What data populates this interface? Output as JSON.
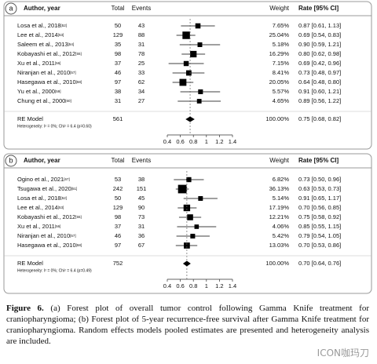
{
  "chart_data": [
    {
      "type": "forest",
      "panel_label": "a",
      "columns": {
        "study": "Author, year",
        "total": "Total",
        "events": "Events",
        "weight": "Weight",
        "rate": "Rate [95% CI]"
      },
      "studies": [
        "Losa et al., 2018",
        "Lee et al., 2014",
        "Saleem et al., 2013",
        "Kobayashi et al., 2012",
        "Xu et al., 2011",
        "Niranjan et al., 2010",
        "Hasegawa et al., 2010",
        "Yu et al., 2000",
        "Chung et al., 2000"
      ],
      "refs": [
        "[52]",
        "[53]",
        "[54]",
        "[55]",
        "[56]",
        "[57]",
        "[58]",
        "[59]",
        "[60]"
      ],
      "total": [
        50,
        129,
        35,
        98,
        37,
        46,
        97,
        38,
        31
      ],
      "events": [
        43,
        88,
        31,
        78,
        25,
        33,
        62,
        34,
        27
      ],
      "weights": [
        7.65,
        25.04,
        5.18,
        16.29,
        7.15,
        8.41,
        20.05,
        5.57,
        4.65
      ],
      "weight_labels": [
        "7.65%",
        "25.04%",
        "5.18%",
        "16.29%",
        "7.15%",
        "8.41%",
        "20.05%",
        "5.57%",
        "4.65%"
      ],
      "rates": [
        0.87,
        0.69,
        0.9,
        0.8,
        0.69,
        0.73,
        0.64,
        0.91,
        0.89
      ],
      "lower": [
        0.61,
        0.54,
        0.59,
        0.62,
        0.42,
        0.48,
        0.48,
        0.6,
        0.56
      ],
      "upper": [
        1.13,
        0.83,
        1.21,
        0.98,
        0.96,
        0.97,
        0.8,
        1.21,
        1.22
      ],
      "ci_labels": [
        "0.87 [0.61, 1.13]",
        "0.69 [0.54, 0.83]",
        "0.90 [0.59, 1.21]",
        "0.80 [0.62, 0.98]",
        "0.69 [0.42, 0.96]",
        "0.73 [0.48, 0.97]",
        "0.64 [0.48, 0.80]",
        "0.91 [0.60, 1.21]",
        "0.89 [0.56, 1.22]"
      ],
      "pooled": {
        "name": "RE Model",
        "total": 561,
        "weight": 100,
        "weight_label": "100.00%",
        "rate": 0.75,
        "lower": 0.68,
        "upper": 0.82,
        "ci_label": "0.75 [0.68, 0.82]"
      },
      "heterogeneity": "Heterogeneity: I² = 0%; Chi² = 6.4 (p=0.60)",
      "xlim": [
        0.4,
        1.4
      ],
      "xticks": [
        0.4,
        0.6,
        0.8,
        1,
        1.2,
        1.4
      ],
      "color": "#000000"
    },
    {
      "type": "forest",
      "panel_label": "b",
      "columns": {
        "study": "Author, year",
        "total": "Total",
        "events": "Events",
        "weight": "Weight",
        "rate": "Rate [95% CI]"
      },
      "studies": [
        "Ogino et al., 2021",
        "Tsugawa et al., 2020",
        "Losa et al., 2018",
        "Lee et al., 2014",
        "Kobayashi et al., 2012",
        "Xu et al., 2011",
        "Niranjan et al., 2010",
        "Hasegawa et al., 2010"
      ],
      "refs": [
        "[67]",
        "[51]",
        "[52]",
        "[53]",
        "[55]",
        "[56]",
        "[57]",
        "[58]"
      ],
      "total": [
        53,
        242,
        50,
        129,
        98,
        37,
        46,
        97
      ],
      "events": [
        38,
        151,
        45,
        90,
        73,
        31,
        36,
        67
      ],
      "weights": [
        6.82,
        36.13,
        5.14,
        17.19,
        12.21,
        4.06,
        5.42,
        13.03
      ],
      "weight_labels": [
        "6.82%",
        "36.13%",
        "5.14%",
        "17.19%",
        "12.21%",
        "4.06%",
        "5.42%",
        "13.03%"
      ],
      "rates": [
        0.73,
        0.63,
        0.91,
        0.7,
        0.75,
        0.85,
        0.79,
        0.7
      ],
      "lower": [
        0.5,
        0.53,
        0.65,
        0.56,
        0.58,
        0.55,
        0.54,
        0.53
      ],
      "upper": [
        0.96,
        0.73,
        1.17,
        0.85,
        0.92,
        1.15,
        1.05,
        0.86
      ],
      "ci_labels": [
        "0.73 [0.50, 0.96]",
        "0.63 [0.53, 0.73]",
        "0.91 [0.65, 1.17]",
        "0.70 [0.56, 0.85]",
        "0.75 [0.58, 0.92]",
        "0.85 [0.55, 1.15]",
        "0.79 [0.54, 1.05]",
        "0.70 [0.53, 0.86]"
      ],
      "pooled": {
        "name": "RE Model",
        "total": 752,
        "weight": 100,
        "weight_label": "100.00%",
        "rate": 0.7,
        "lower": 0.64,
        "upper": 0.76,
        "ci_label": "0.70 [0.64, 0.76]"
      },
      "heterogeneity": "Heterogeneity: I² = 0%; Chi² = 6.4 (p=0.49)",
      "xlim": [
        0.4,
        1.4
      ],
      "xticks": [
        0.4,
        0.6,
        0.8,
        1,
        1.2,
        1.4
      ],
      "color": "#000000"
    }
  ],
  "caption": {
    "label": "Figure 6.",
    "text": "(a) Forest plot of overall tumor control following Gamma Knife treatment for craniopharyngioma; (b) Forest plot of 5-year recurrence-free survival after Gamma Knife treatment for craniopharyngioma. Random effects models pooled estimates are presented and heterogeneity analysis are included."
  },
  "watermark": "ICON咖玛刀"
}
